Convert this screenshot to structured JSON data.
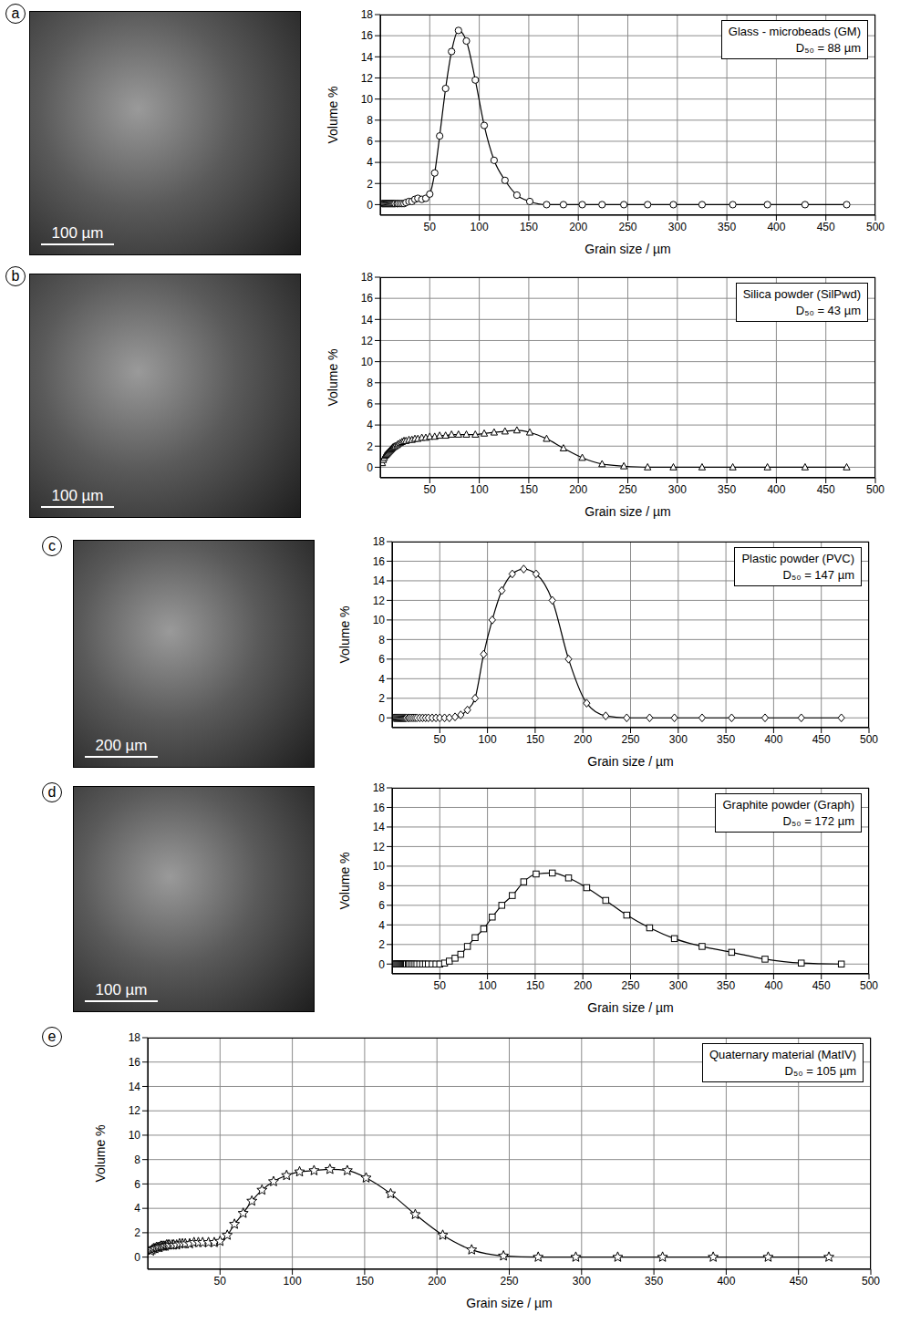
{
  "chart_data": [
    {
      "type": "line",
      "panel": "a",
      "title": "Glass - microbeads (GM)",
      "subtitle": "D₅₀ = 88 µm",
      "scale_bar": "100 µm",
      "x_label": "Grain size / µm",
      "y_label": "Volume %",
      "marker": "circle",
      "color": "#000000",
      "grid": true,
      "x": [
        2,
        3,
        4,
        5,
        6,
        7,
        8,
        9,
        10,
        11,
        12,
        13,
        14,
        15,
        17,
        18,
        20,
        22,
        24,
        26,
        29,
        32,
        35,
        38,
        42,
        46,
        50,
        55,
        60,
        66,
        72,
        79,
        87,
        96,
        105,
        115,
        126,
        138,
        151,
        168,
        185,
        204,
        224,
        246,
        270,
        296,
        325,
        356,
        391,
        429,
        471
      ],
      "values": [
        0.1,
        0.1,
        0.1,
        0.1,
        0.1,
        0.1,
        0.1,
        0.1,
        0.1,
        0.1,
        0.1,
        0.1,
        0.1,
        0.1,
        0.1,
        0.1,
        0.1,
        0.1,
        0.1,
        0.2,
        0.3,
        0.3,
        0.5,
        0.6,
        0.5,
        0.6,
        1,
        3,
        6.5,
        11,
        14.5,
        16.5,
        15.5,
        11.8,
        7.5,
        4.2,
        2.3,
        0.9,
        0.3,
        0,
        0,
        0,
        0,
        0,
        0,
        0,
        0,
        0,
        0,
        0,
        0
      ],
      "xlim": [
        0,
        500
      ],
      "xticks": [
        50,
        100,
        150,
        200,
        250,
        300,
        350,
        400,
        450,
        500
      ],
      "ylim": [
        -1,
        18
      ],
      "yticks": [
        0,
        2,
        4,
        6,
        8,
        10,
        12,
        14,
        16,
        18
      ]
    },
    {
      "type": "line",
      "panel": "b",
      "title": "Silica powder (SilPwd)",
      "subtitle": "D₅₀ = 43 µm",
      "scale_bar": "100 µm",
      "x_label": "Grain size / µm",
      "y_label": "Volume %",
      "marker": "triangle",
      "color": "#000000",
      "grid": true,
      "x": [
        2,
        3,
        4,
        5,
        6,
        7,
        8,
        9,
        10,
        11,
        12,
        13,
        14,
        15,
        17,
        18,
        20,
        22,
        24,
        26,
        29,
        32,
        35,
        38,
        42,
        46,
        50,
        55,
        60,
        66,
        72,
        79,
        87,
        96,
        105,
        115,
        126,
        138,
        151,
        168,
        185,
        204,
        224,
        246,
        270,
        296,
        325,
        356,
        391,
        429,
        471
      ],
      "values": [
        0.4,
        0.7,
        0.9,
        1.1,
        1.2,
        1.3,
        1.4,
        1.5,
        1.6,
        1.7,
        1.8,
        1.9,
        1.95,
        2,
        2.1,
        2.2,
        2.3,
        2.4,
        2.5,
        2.5,
        2.6,
        2.6,
        2.7,
        2.7,
        2.8,
        2.8,
        2.9,
        2.9,
        3,
        3,
        3.1,
        3.1,
        3.1,
        3.1,
        3.2,
        3.3,
        3.4,
        3.5,
        3.3,
        2.7,
        1.8,
        0.9,
        0.3,
        0.1,
        0,
        0,
        0,
        0,
        0,
        0,
        0
      ],
      "xlim": [
        0,
        500
      ],
      "xticks": [
        50,
        100,
        150,
        200,
        250,
        300,
        350,
        400,
        450,
        500
      ],
      "ylim": [
        -1,
        18
      ],
      "yticks": [
        0,
        2,
        4,
        6,
        8,
        10,
        12,
        14,
        16,
        18
      ]
    },
    {
      "type": "line",
      "panel": "c",
      "title": "Plastic powder (PVC)",
      "subtitle": "D₅₀ = 147 µm",
      "scale_bar": "200 µm",
      "x_label": "Grain size / µm",
      "y_label": "Volume %",
      "marker": "diamond",
      "color": "#000000",
      "grid": true,
      "x": [
        2,
        3,
        4,
        5,
        6,
        7,
        8,
        9,
        10,
        11,
        12,
        13,
        14,
        15,
        17,
        18,
        20,
        22,
        24,
        26,
        29,
        32,
        35,
        38,
        42,
        46,
        50,
        55,
        60,
        66,
        72,
        79,
        87,
        96,
        105,
        115,
        126,
        138,
        151,
        168,
        185,
        204,
        224,
        246,
        270,
        296,
        325,
        356,
        391,
        429,
        471
      ],
      "values": [
        0,
        0,
        0,
        0,
        0,
        0,
        0,
        0,
        0,
        0,
        0,
        0,
        0,
        0,
        0,
        0,
        0,
        0,
        0,
        0,
        0,
        0,
        0,
        0,
        0,
        0,
        0,
        0,
        0,
        0.1,
        0.3,
        0.8,
        2,
        6.5,
        10,
        13,
        14.7,
        15.2,
        14.7,
        12,
        6,
        1.5,
        0.2,
        0,
        0,
        0,
        0,
        0,
        0,
        0,
        0
      ],
      "xlim": [
        0,
        500
      ],
      "xticks": [
        50,
        100,
        150,
        200,
        250,
        300,
        350,
        400,
        450,
        500
      ],
      "ylim": [
        -1,
        18
      ],
      "yticks": [
        0,
        2,
        4,
        6,
        8,
        10,
        12,
        14,
        16,
        18
      ]
    },
    {
      "type": "line",
      "panel": "d",
      "title": "Graphite powder (Graph)",
      "subtitle": "D₅₀ = 172 µm",
      "scale_bar": "100 µm",
      "x_label": "Grain size / µm",
      "y_label": "Volume %",
      "marker": "square",
      "color": "#000000",
      "grid": true,
      "x": [
        2,
        3,
        4,
        5,
        6,
        7,
        8,
        9,
        10,
        11,
        12,
        13,
        14,
        15,
        17,
        18,
        20,
        22,
        24,
        26,
        29,
        32,
        35,
        38,
        42,
        46,
        50,
        55,
        60,
        66,
        72,
        79,
        87,
        96,
        105,
        115,
        126,
        138,
        151,
        168,
        185,
        204,
        224,
        246,
        270,
        296,
        325,
        356,
        391,
        429,
        471
      ],
      "values": [
        0,
        0,
        0,
        0,
        0,
        0,
        0,
        0,
        0,
        0,
        0,
        0,
        0,
        0,
        0,
        0,
        0,
        0,
        0,
        0,
        0,
        0,
        0,
        0,
        0,
        0,
        0,
        0.1,
        0.3,
        0.6,
        1,
        1.8,
        2.7,
        3.6,
        4.8,
        6,
        7,
        8.4,
        9.2,
        9.3,
        8.8,
        7.8,
        6.5,
        5,
        3.7,
        2.6,
        1.8,
        1.2,
        0.5,
        0.1,
        0
      ],
      "xlim": [
        0,
        500
      ],
      "xticks": [
        50,
        100,
        150,
        200,
        250,
        300,
        350,
        400,
        450,
        500
      ],
      "ylim": [
        -1,
        18
      ],
      "yticks": [
        0,
        2,
        4,
        6,
        8,
        10,
        12,
        14,
        16,
        18
      ]
    },
    {
      "type": "line",
      "panel": "e",
      "title": "Quaternary material (MatIV)",
      "subtitle": "D₅₀ = 105 µm",
      "x_label": "Grain size / µm",
      "y_label": "Volume %",
      "marker": "star",
      "color": "#000000",
      "grid": true,
      "x": [
        2,
        3,
        4,
        5,
        6,
        7,
        8,
        9,
        10,
        11,
        12,
        13,
        14,
        15,
        17,
        18,
        20,
        22,
        24,
        26,
        29,
        32,
        35,
        38,
        42,
        46,
        50,
        55,
        60,
        66,
        72,
        79,
        87,
        96,
        105,
        115,
        126,
        138,
        151,
        168,
        185,
        204,
        224,
        246,
        270,
        296,
        325,
        356,
        391,
        429,
        471
      ],
      "values": [
        0.5,
        0.6,
        0.7,
        0.7,
        0.8,
        0.8,
        0.8,
        0.9,
        0.9,
        0.9,
        0.9,
        1,
        1,
        1,
        1,
        1,
        1,
        1.1,
        1.1,
        1.1,
        1.1,
        1.2,
        1.2,
        1.2,
        1.2,
        1.2,
        1.3,
        1.8,
        2.7,
        3.6,
        4.6,
        5.5,
        6.2,
        6.7,
        7,
        7.1,
        7.2,
        7.1,
        6.5,
        5.2,
        3.5,
        1.8,
        0.6,
        0.1,
        0,
        0,
        0,
        0,
        0,
        0,
        0
      ],
      "xlim": [
        0,
        500
      ],
      "xticks": [
        50,
        100,
        150,
        200,
        250,
        300,
        350,
        400,
        450,
        500
      ],
      "ylim": [
        -1,
        18
      ],
      "yticks": [
        0,
        2,
        4,
        6,
        8,
        10,
        12,
        14,
        16,
        18
      ]
    }
  ]
}
